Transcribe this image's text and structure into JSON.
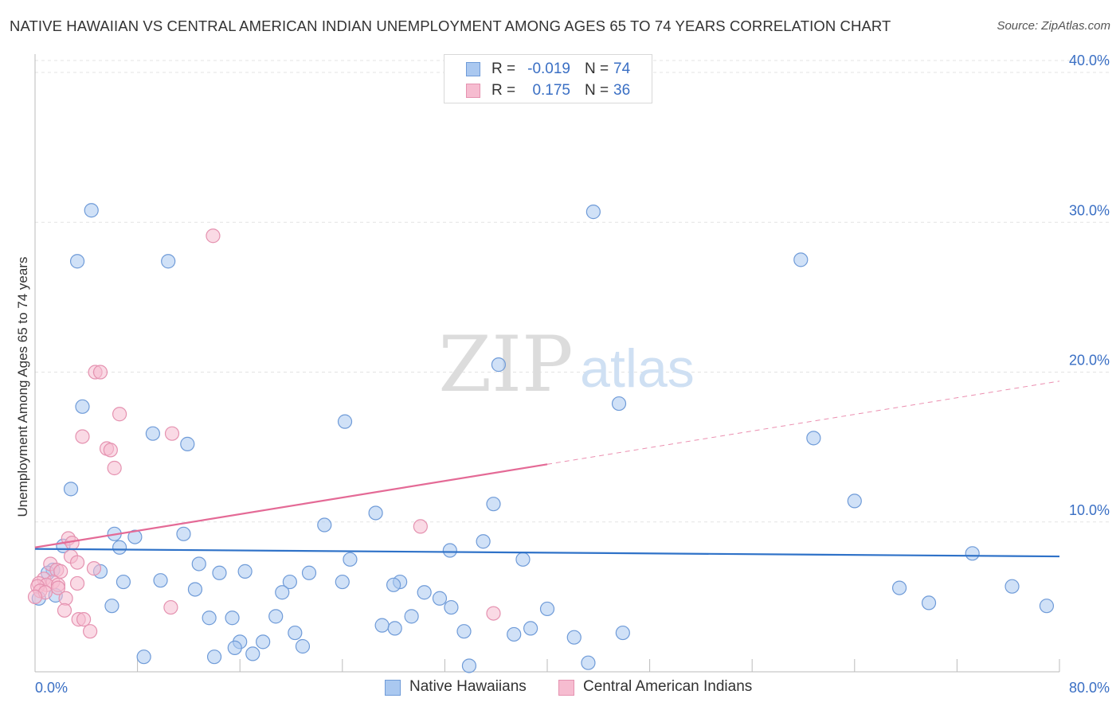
{
  "header": {
    "title": "NATIVE HAWAIIAN VS CENTRAL AMERICAN INDIAN UNEMPLOYMENT AMONG AGES 65 TO 74 YEARS CORRELATION CHART",
    "source": "Source: ZipAtlas.com"
  },
  "watermark": {
    "zip": "ZIP",
    "atlas": "atlas"
  },
  "legend": {
    "rows": [
      {
        "swatch": "#aac8f0",
        "r_label": "R =",
        "r_value": "-0.019",
        "n_label": "N =",
        "n_value": "74"
      },
      {
        "swatch": "#f6bcd0",
        "r_label": "R =",
        "r_value": "0.175",
        "n_label": "N =",
        "n_value": "36"
      }
    ]
  },
  "bottom_legend": {
    "items": [
      {
        "label": "Native Hawaiians",
        "color": "#aac8f0"
      },
      {
        "label": "Central American Indians",
        "color": "#f6bcd0"
      }
    ]
  },
  "colors": {
    "blue_fill": "#aac8f0",
    "blue_stroke": "#6f9bd8",
    "blue_line": "#2f72c8",
    "pink_fill": "#f6bcd0",
    "pink_stroke": "#e592b0",
    "pink_line": "#e46a96",
    "grid": "#e3e3e3",
    "axis_text": "#3a6fc4"
  },
  "chart_data": {
    "type": "scatter",
    "title": "NATIVE HAWAIIAN VS CENTRAL AMERICAN INDIAN UNEMPLOYMENT AMONG AGES 65 TO 74 YEARS CORRELATION CHART",
    "xlabel": "",
    "ylabel": "Unemployment Among Ages 65 to 74 years",
    "xlim": [
      0,
      80
    ],
    "ylim": [
      0,
      40.8
    ],
    "x_tick_labels": [
      "0.0%",
      "80.0%"
    ],
    "y_ticks": [
      10,
      20,
      30,
      40
    ],
    "y_tick_labels": [
      "10.0%",
      "20.0%",
      "30.0%",
      "40.0%"
    ],
    "grid": true,
    "legend_position": "top-center",
    "series": [
      {
        "name": "Native Hawaiians",
        "r": -0.019,
        "n": 74,
        "trend": {
          "x": [
            0,
            80
          ],
          "y": [
            8.2,
            7.7
          ],
          "solid_until": 80
        },
        "points": [
          [
            4.4,
            30.8
          ],
          [
            3.3,
            27.4
          ],
          [
            10.4,
            27.4
          ],
          [
            43.6,
            30.7
          ],
          [
            59.8,
            27.5
          ],
          [
            3.7,
            17.7
          ],
          [
            9.2,
            15.9
          ],
          [
            11.9,
            15.2
          ],
          [
            24.2,
            16.7
          ],
          [
            36.2,
            20.5
          ],
          [
            45.6,
            17.9
          ],
          [
            60.8,
            15.6
          ],
          [
            2.8,
            12.2
          ],
          [
            35.8,
            11.2
          ],
          [
            64.0,
            11.4
          ],
          [
            26.6,
            10.6
          ],
          [
            22.6,
            9.8
          ],
          [
            6.2,
            9.2
          ],
          [
            7.8,
            9.0
          ],
          [
            11.6,
            9.2
          ],
          [
            2.2,
            8.4
          ],
          [
            32.4,
            8.1
          ],
          [
            35.0,
            8.7
          ],
          [
            73.2,
            7.9
          ],
          [
            38.1,
            7.5
          ],
          [
            24.6,
            7.5
          ],
          [
            12.8,
            7.2
          ],
          [
            1.4,
            6.8
          ],
          [
            1.0,
            6.6
          ],
          [
            5.1,
            6.7
          ],
          [
            14.4,
            6.6
          ],
          [
            16.4,
            6.7
          ],
          [
            21.4,
            6.6
          ],
          [
            9.8,
            6.1
          ],
          [
            6.9,
            6.0
          ],
          [
            19.9,
            6.0
          ],
          [
            24.0,
            6.0
          ],
          [
            28.5,
            6.0
          ],
          [
            28.0,
            5.8
          ],
          [
            12.5,
            5.5
          ],
          [
            19.3,
            5.3
          ],
          [
            30.4,
            5.3
          ],
          [
            31.6,
            4.9
          ],
          [
            67.5,
            5.6
          ],
          [
            76.3,
            5.7
          ],
          [
            1.6,
            5.1
          ],
          [
            0.3,
            4.9
          ],
          [
            6.0,
            4.4
          ],
          [
            32.5,
            4.3
          ],
          [
            40.0,
            4.2
          ],
          [
            69.8,
            4.6
          ],
          [
            79.0,
            4.4
          ],
          [
            13.6,
            3.6
          ],
          [
            15.4,
            3.6
          ],
          [
            18.8,
            3.7
          ],
          [
            29.4,
            3.7
          ],
          [
            27.1,
            3.1
          ],
          [
            28.1,
            2.9
          ],
          [
            33.5,
            2.7
          ],
          [
            20.3,
            2.6
          ],
          [
            37.4,
            2.5
          ],
          [
            38.7,
            2.9
          ],
          [
            42.1,
            2.3
          ],
          [
            45.9,
            2.6
          ],
          [
            16.0,
            2.0
          ],
          [
            17.8,
            2.0
          ],
          [
            15.6,
            1.6
          ],
          [
            17.0,
            1.2
          ],
          [
            20.9,
            1.7
          ],
          [
            8.5,
            1.0
          ],
          [
            14.0,
            1.0
          ],
          [
            33.9,
            0.4
          ],
          [
            43.2,
            0.6
          ],
          [
            6.6,
            8.3
          ]
        ]
      },
      {
        "name": "Central American Indians",
        "r": 0.175,
        "n": 36,
        "trend": {
          "x": [
            0,
            80
          ],
          "y": [
            8.3,
            19.4
          ],
          "solid_until": 40
        },
        "points": [
          [
            13.9,
            29.1
          ],
          [
            4.7,
            20.0
          ],
          [
            5.1,
            20.0
          ],
          [
            6.6,
            17.2
          ],
          [
            3.7,
            15.7
          ],
          [
            10.7,
            15.9
          ],
          [
            5.6,
            14.9
          ],
          [
            5.9,
            14.8
          ],
          [
            6.2,
            13.6
          ],
          [
            30.1,
            9.7
          ],
          [
            2.6,
            8.9
          ],
          [
            2.9,
            8.6
          ],
          [
            2.8,
            7.7
          ],
          [
            3.3,
            7.3
          ],
          [
            1.2,
            7.2
          ],
          [
            4.6,
            6.9
          ],
          [
            1.7,
            6.8
          ],
          [
            2.0,
            6.7
          ],
          [
            0.7,
            6.2
          ],
          [
            1.4,
            6.0
          ],
          [
            0.3,
            5.9
          ],
          [
            0.9,
            5.8
          ],
          [
            1.8,
            5.8
          ],
          [
            3.3,
            5.9
          ],
          [
            0.2,
            5.7
          ],
          [
            1.8,
            5.6
          ],
          [
            0.4,
            5.4
          ],
          [
            0.8,
            5.3
          ],
          [
            2.4,
            4.9
          ],
          [
            2.3,
            4.1
          ],
          [
            10.6,
            4.3
          ],
          [
            35.8,
            3.9
          ],
          [
            3.4,
            3.5
          ],
          [
            3.8,
            3.5
          ],
          [
            4.3,
            2.7
          ],
          [
            0.0,
            5.0
          ]
        ]
      }
    ]
  }
}
